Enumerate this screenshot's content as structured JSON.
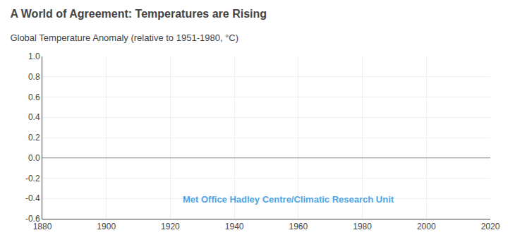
{
  "chart_data": {
    "type": "line",
    "title": "A World of Agreement: Temperatures are Rising",
    "subtitle": "Global Temperature Anomaly (relative to 1951-1980, °C)",
    "series": [],
    "xlim": [
      1880,
      2020
    ],
    "ylim": [
      -0.6,
      1.0
    ],
    "xticks": [
      1880,
      1900,
      1920,
      1940,
      1960,
      1980,
      2000,
      2020
    ],
    "yticks": [
      -0.6,
      -0.4,
      -0.2,
      {
        "value": 0.0,
        "label": "0.0"
      },
      0.2,
      0.4,
      0.6,
      0.8,
      {
        "value": 1.0,
        "label": "1.0"
      }
    ],
    "hlines": [
      {
        "y": 0.0,
        "color": "#888888"
      }
    ],
    "grid": true,
    "annotations": [
      {
        "text": "Met Office Hadley Centre/Climatic Research Unit",
        "color": "#4da6e8"
      }
    ]
  }
}
